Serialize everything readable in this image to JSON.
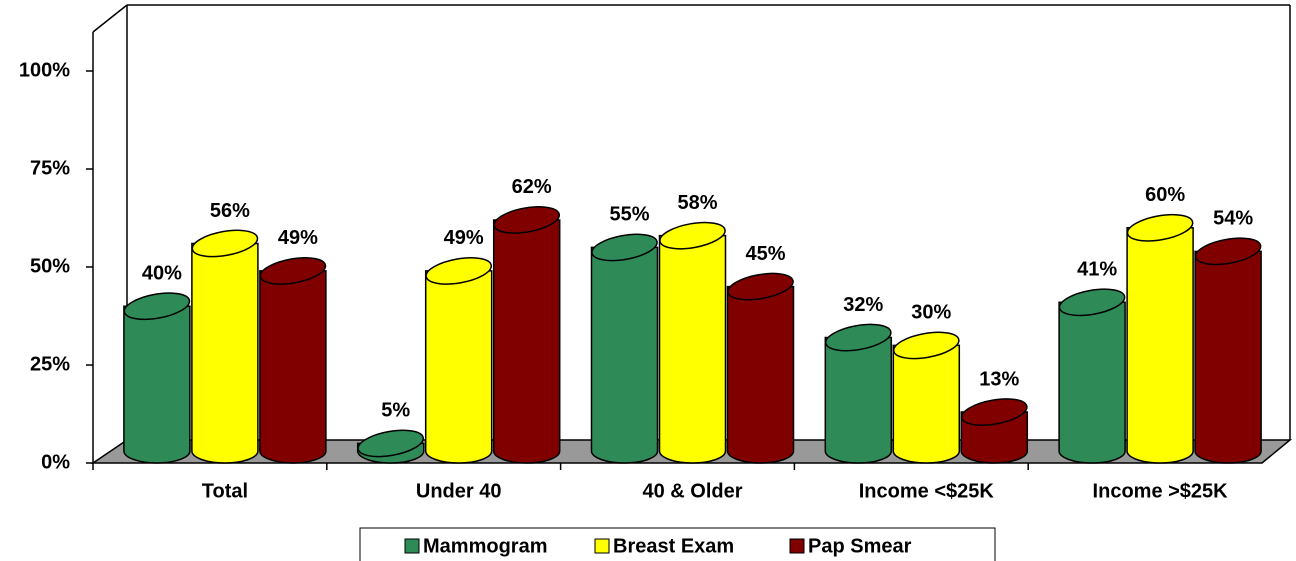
{
  "chart_data": {
    "type": "bar",
    "categories": [
      "Total",
      "Under 40",
      "40 & Older",
      "Income <$25K",
      "Income >$25K"
    ],
    "series": [
      {
        "name": "Mammogram",
        "color": "#2e8b57",
        "values": [
          40,
          5,
          55,
          32,
          41
        ],
        "value_labels": [
          "40%",
          "5%",
          "55%",
          "32%",
          "41%"
        ]
      },
      {
        "name": "Breast Exam",
        "color": "#ffff00",
        "values": [
          56,
          49,
          58,
          30,
          60
        ],
        "value_labels": [
          "56%",
          "49%",
          "58%",
          "30%",
          "60%"
        ]
      },
      {
        "name": "Pap Smear",
        "color": "#800000",
        "values": [
          49,
          62,
          45,
          13,
          54
        ],
        "value_labels": [
          "49%",
          "62%",
          "45%",
          "13%",
          "54%"
        ]
      }
    ],
    "ylim": [
      0,
      110
    ],
    "yticks": [
      {
        "value": 0,
        "label": "0%"
      },
      {
        "value": 25,
        "label": "25%"
      },
      {
        "value": 50,
        "label": "50%"
      },
      {
        "value": 75,
        "label": "75%"
      },
      {
        "value": 100,
        "label": "100%"
      }
    ],
    "legend": "bottom",
    "grid": false
  }
}
